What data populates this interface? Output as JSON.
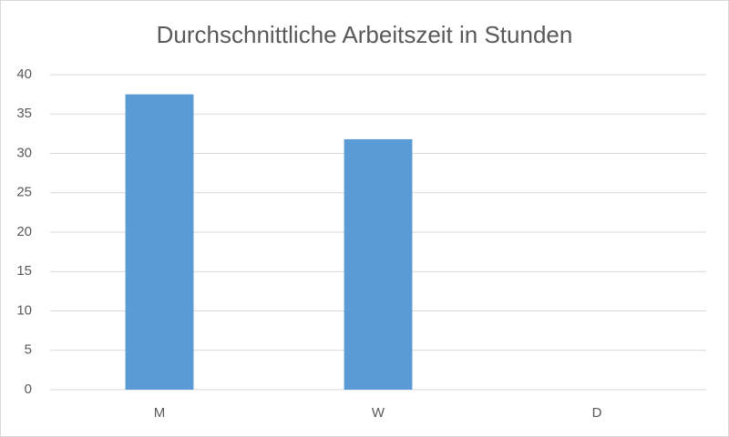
{
  "chart_data": {
    "type": "bar",
    "title": "Durchschnittliche Arbeitszeit in Stunden",
    "categories": [
      "M",
      "W",
      "D"
    ],
    "values": [
      37.5,
      31.8,
      0
    ],
    "color": "#5b9bd5",
    "ylim": [
      0,
      40
    ],
    "yticks": [
      0,
      5,
      10,
      15,
      20,
      25,
      30,
      35,
      40
    ],
    "grid": true
  }
}
